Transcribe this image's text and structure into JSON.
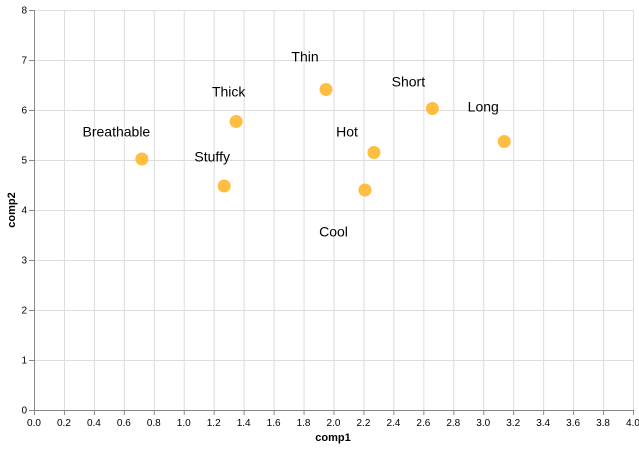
{
  "chart_data": {
    "type": "scatter",
    "title": "",
    "xlabel": "comp1",
    "ylabel": "comp2",
    "xlim": [
      0,
      4
    ],
    "ylim": [
      0,
      8
    ],
    "x_ticks": [
      "0.0",
      "0.2",
      "0.4",
      "0.6",
      "0.8",
      "1.0",
      "1.2",
      "1.4",
      "1.6",
      "1.8",
      "2.0",
      "2.2",
      "2.4",
      "2.6",
      "2.8",
      "3.0",
      "3.2",
      "3.4",
      "3.6",
      "3.8",
      "4.0"
    ],
    "y_ticks": [
      "0",
      "1",
      "2",
      "3",
      "4",
      "5",
      "6",
      "7",
      "8"
    ],
    "grid": true,
    "point_color": "#ffb938",
    "points": [
      {
        "x": 0.72,
        "y": 5.02
      },
      {
        "x": 1.27,
        "y": 4.48
      },
      {
        "x": 1.35,
        "y": 5.77
      },
      {
        "x": 1.95,
        "y": 6.41
      },
      {
        "x": 2.21,
        "y": 4.4
      },
      {
        "x": 2.27,
        "y": 5.15
      },
      {
        "x": 2.66,
        "y": 6.03
      },
      {
        "x": 3.14,
        "y": 5.37
      }
    ],
    "labels": [
      {
        "text": "Breathable",
        "x": 0.55,
        "y": 5.47
      },
      {
        "text": "Stuffy",
        "x": 1.19,
        "y": 4.97
      },
      {
        "text": "Thick",
        "x": 1.3,
        "y": 6.27
      },
      {
        "text": "Thin",
        "x": 1.81,
        "y": 6.97
      },
      {
        "text": "Cool",
        "x": 2.0,
        "y": 3.47
      },
      {
        "text": "Hot",
        "x": 2.09,
        "y": 5.47
      },
      {
        "text": "Short",
        "x": 2.5,
        "y": 6.47
      },
      {
        "text": "Long",
        "x": 3.0,
        "y": 5.97
      }
    ]
  }
}
